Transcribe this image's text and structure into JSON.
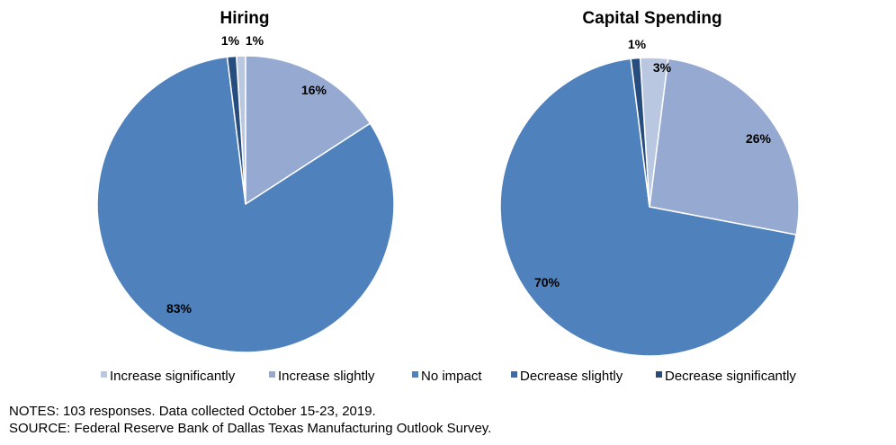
{
  "chart_data": [
    {
      "type": "pie",
      "title": "Hiring",
      "categories": [
        "Increase significantly",
        "Increase slightly",
        "No impact",
        "Decrease slightly",
        "Decrease significantly"
      ],
      "values": [
        1,
        16,
        83,
        0,
        1
      ],
      "labels": [
        "1%",
        "16%",
        "83%",
        "",
        "1%"
      ]
    },
    {
      "type": "pie",
      "title": "Capital Spending",
      "categories": [
        "Increase significantly",
        "Increase slightly",
        "No impact",
        "Decrease slightly",
        "Decrease significantly"
      ],
      "values": [
        3,
        26,
        70,
        0,
        1
      ],
      "labels": [
        "3%",
        "26%",
        "70%",
        "",
        "1%"
      ]
    }
  ],
  "legend": {
    "placement": "bottom",
    "items": [
      {
        "label": "Increase significantly",
        "color": "#B9C8E0"
      },
      {
        "label": "Increase slightly",
        "color": "#95A9D1"
      },
      {
        "label": "No impact",
        "color": "#4F81BD"
      },
      {
        "label": "Decrease slightly",
        "color": "#3E69A5"
      },
      {
        "label": "Decrease significantly",
        "color": "#264D7E"
      }
    ]
  },
  "notes": {
    "line1": "NOTES: 103 responses. Data collected October 15-23, 2019.",
    "line2": "SOURCE: Federal Reserve Bank of Dallas Texas Manufacturing  Outlook Survey."
  }
}
